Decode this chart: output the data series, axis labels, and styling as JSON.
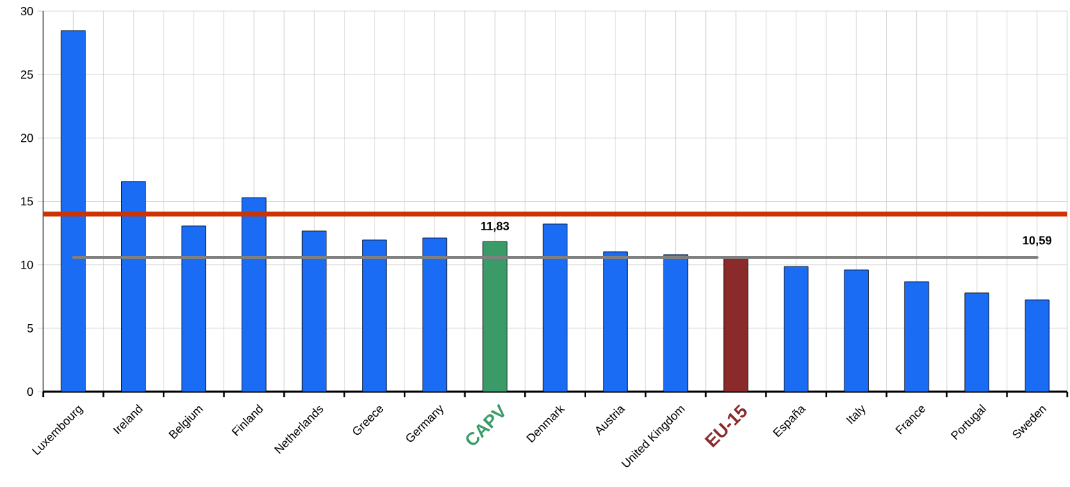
{
  "chart_data": {
    "type": "bar",
    "categories": [
      "Luxembourg",
      "Ireland",
      "Belgium",
      "Finland",
      "Netherlands",
      "Greece",
      "Germany",
      "CAPV",
      "Denmark",
      "Austria",
      "United Kingdom",
      "EU-15",
      "España",
      "Italy",
      "France",
      "Portugal",
      "Sweden"
    ],
    "values": [
      28.47,
      16.57,
      13.06,
      15.3,
      12.67,
      11.96,
      12.12,
      11.83,
      13.22,
      11.03,
      10.81,
      10.59,
      9.87,
      9.6,
      8.67,
      7.79,
      7.24
    ],
    "colors": [
      "#1a6cf5",
      "#1a6cf5",
      "#1a6cf5",
      "#1a6cf5",
      "#1a6cf5",
      "#1a6cf5",
      "#1a6cf5",
      "#3a9a68",
      "#1a6cf5",
      "#1a6cf5",
      "#1a6cf5",
      "#8b2a2a",
      "#1a6cf5",
      "#1a6cf5",
      "#1a6cf5",
      "#1a6cf5",
      "#1a6cf5"
    ],
    "value_labels": [
      null,
      null,
      null,
      null,
      null,
      null,
      null,
      "11,83",
      null,
      null,
      null,
      null,
      null,
      null,
      null,
      null,
      null
    ],
    "ylim": [
      0,
      30
    ],
    "yticks": [
      0,
      5,
      10,
      15,
      20,
      25,
      30
    ],
    "grid": true,
    "ref_lines": [
      {
        "axis": "y",
        "value": 14,
        "color": "#cc3300"
      },
      {
        "axis": "y",
        "value": 10.59,
        "label": "10,59",
        "color": "#808080"
      }
    ]
  }
}
